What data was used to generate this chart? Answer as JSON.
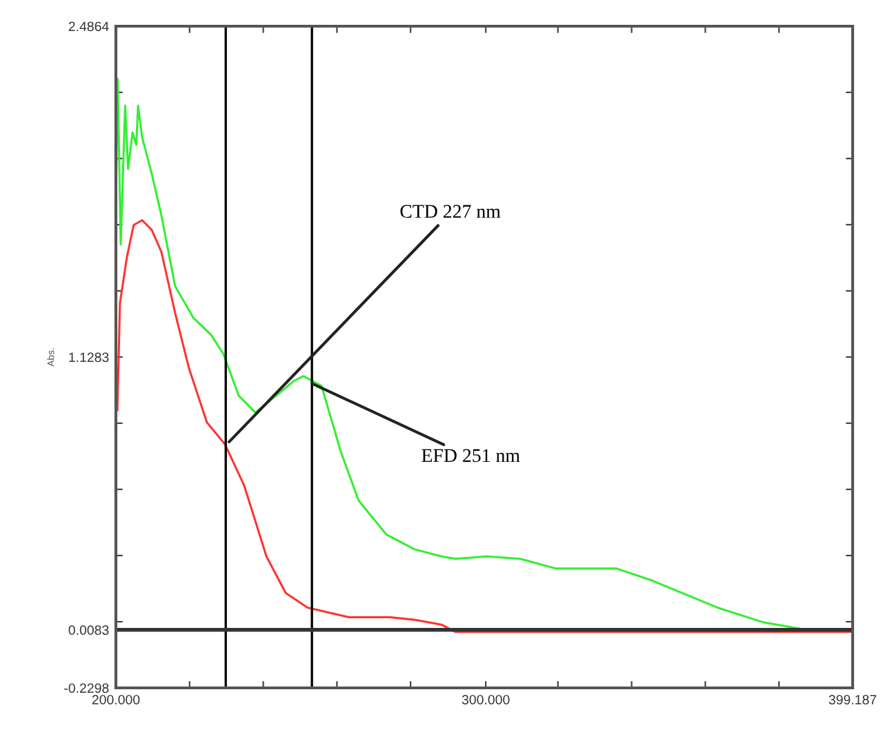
{
  "chart_data": {
    "type": "line",
    "ylabel": "Abs.",
    "xlim": [
      200,
      399.187
    ],
    "ylim": [
      -0.2298,
      2.4864
    ],
    "xticks": [
      {
        "value": 200,
        "label": "200.000"
      },
      {
        "value": 219.92,
        "label": null
      },
      {
        "value": 239.84,
        "label": null
      },
      {
        "value": 259.76,
        "label": null
      },
      {
        "value": 279.67,
        "label": null
      },
      {
        "value": 300,
        "label": "300.000"
      },
      {
        "value": 319.51,
        "label": null
      },
      {
        "value": 339.43,
        "label": null
      },
      {
        "value": 359.35,
        "label": null
      },
      {
        "value": 379.27,
        "label": null
      },
      {
        "value": 399.187,
        "label": "399.187"
      }
    ],
    "yticks": [
      {
        "value": -0.2298,
        "label": "-0.2298"
      },
      {
        "value": 0.0083,
        "label": "0.0083"
      },
      {
        "value": 0.0418,
        "label": null
      },
      {
        "value": 0.3135,
        "label": null
      },
      {
        "value": 0.5851,
        "label": null
      },
      {
        "value": 0.8567,
        "label": null
      },
      {
        "value": 1.1283,
        "label": "1.1283"
      },
      {
        "value": 1.3999,
        "label": null
      },
      {
        "value": 1.6716,
        "label": null
      },
      {
        "value": 1.9432,
        "label": null
      },
      {
        "value": 2.2148,
        "label": null
      },
      {
        "value": 2.4864,
        "label": "2.4864"
      }
    ],
    "grid": false,
    "legend": false,
    "series": [
      {
        "color": "#33ee33",
        "x": [
          200.0,
          200.5,
          201.3,
          202.5,
          203.3,
          204.5,
          205.5,
          206.0,
          207.1,
          209.7,
          212.3,
          216.0,
          220.9,
          225.7,
          229.1,
          233.2,
          237.7,
          243.3,
          248.1,
          250.7,
          255.6,
          260.8,
          265.6,
          273.1,
          280.6,
          288.0,
          291.8,
          300.3,
          309.3,
          319.0,
          335.4,
          345.1,
          362.6,
          374.9,
          386.1
        ],
        "values": [
          1.79,
          2.27,
          1.59,
          2.16,
          1.9,
          2.05,
          2.0,
          2.16,
          2.03,
          1.88,
          1.71,
          1.42,
          1.29,
          1.22,
          1.14,
          0.97,
          0.9,
          0.97,
          1.03,
          1.05,
          1.01,
          0.74,
          0.54,
          0.4,
          0.34,
          0.31,
          0.3,
          0.31,
          0.3,
          0.26,
          0.26,
          0.21,
          0.1,
          0.04,
          0.01
        ]
      },
      {
        "color": "#ff3333",
        "x": [
          200.4,
          201.1,
          203.0,
          204.8,
          207.1,
          209.7,
          212.3,
          216.0,
          219.8,
          224.6,
          229.5,
          234.7,
          240.7,
          245.9,
          251.8,
          263.0,
          274.2,
          280.6,
          288.0,
          291.8,
          300.0,
          399.187
        ],
        "values": [
          0.91,
          1.35,
          1.54,
          1.67,
          1.69,
          1.65,
          1.56,
          1.31,
          1.08,
          0.86,
          0.77,
          0.6,
          0.31,
          0.16,
          0.1,
          0.06,
          0.06,
          0.05,
          0.03,
          0.0,
          0.0,
          0.0
        ]
      }
    ],
    "ref_lines": [
      {
        "axis": "x",
        "value": 229.7,
        "color": "#000000"
      },
      {
        "axis": "x",
        "value": 253.0,
        "color": "#000000"
      },
      {
        "axis": "y",
        "value": 0.0083,
        "color": "#333333"
      }
    ],
    "annotations": [
      {
        "text": "CTD 227 nm",
        "x": 230.6,
        "y": 0.78
      },
      {
        "text": "EFD 251 nm",
        "x": 253.0,
        "y": 1.02
      }
    ]
  }
}
